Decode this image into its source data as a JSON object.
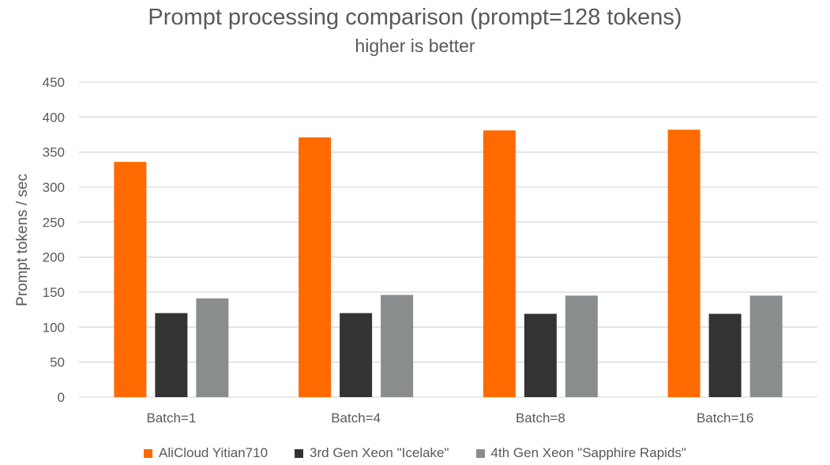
{
  "chart_data": {
    "type": "bar",
    "title": "Prompt processing comparison (prompt=128 tokens)",
    "subtitle": "higher is better",
    "xlabel": "",
    "ylabel": "Prompt tokens / sec",
    "ylim": [
      0,
      450
    ],
    "yticks": [
      0,
      50,
      100,
      150,
      200,
      250,
      300,
      350,
      400,
      450
    ],
    "grid": true,
    "legend_position": "bottom",
    "categories": [
      "Batch=1",
      "Batch=4",
      "Batch=8",
      "Batch=16"
    ],
    "series": [
      {
        "name": "AliCloud Yitian710",
        "color": "#ff6a00",
        "values": [
          336,
          371,
          381,
          382
        ]
      },
      {
        "name": "3rd Gen Xeon \"Icelake\"",
        "color": "#333333",
        "values": [
          120,
          120,
          119,
          119
        ]
      },
      {
        "name": "4th Gen Xeon \"Sapphire Rapids\"",
        "color": "#8a8d8e",
        "values": [
          141,
          146,
          145,
          145
        ]
      }
    ]
  }
}
